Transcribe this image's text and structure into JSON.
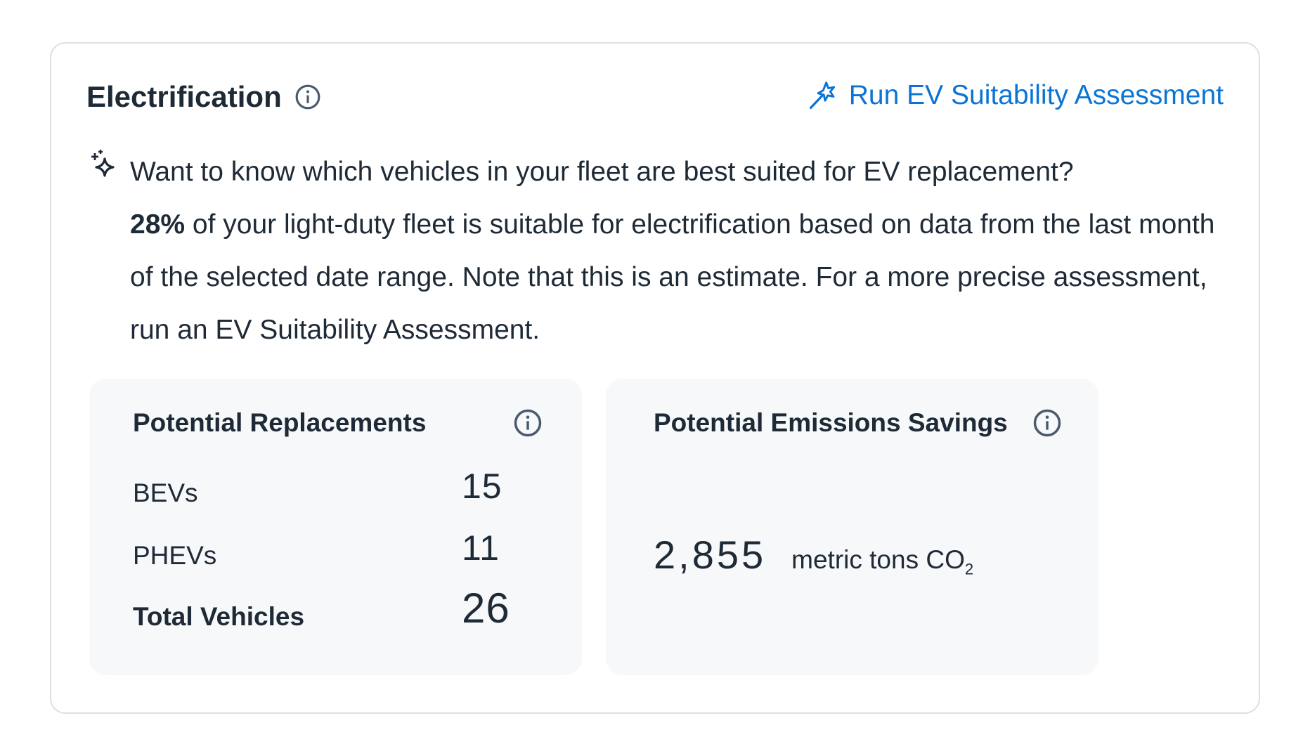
{
  "card": {
    "title": "Electrification",
    "title_info_icon": "info-circle-icon",
    "action_link": {
      "label": "Run EV Suitability Assessment",
      "icon": "magic-wand-icon",
      "color": "#0a74d6"
    },
    "insight": {
      "icon": "sparkles-icon",
      "intro": "Want to know which vehicles in your fleet are best suited for EV replacement?",
      "highlight": "28%",
      "rest": " of your light-duty fleet is suitable for electrification based on data from the last month of the selected date range. Note that this is an estimate. For a more precise assessment, run an EV Suitability Assessment."
    },
    "replacements": {
      "title": "Potential Replacements",
      "rows": [
        {
          "label": "BEVs",
          "value": "15"
        },
        {
          "label": "PHEVs",
          "value": "11"
        },
        {
          "label": "Total Vehicles",
          "value": "26"
        }
      ]
    },
    "emissions": {
      "title": "Potential Emissions Savings",
      "value": "2,855",
      "unit": "metric tons CO",
      "unit_sub": "2"
    }
  }
}
